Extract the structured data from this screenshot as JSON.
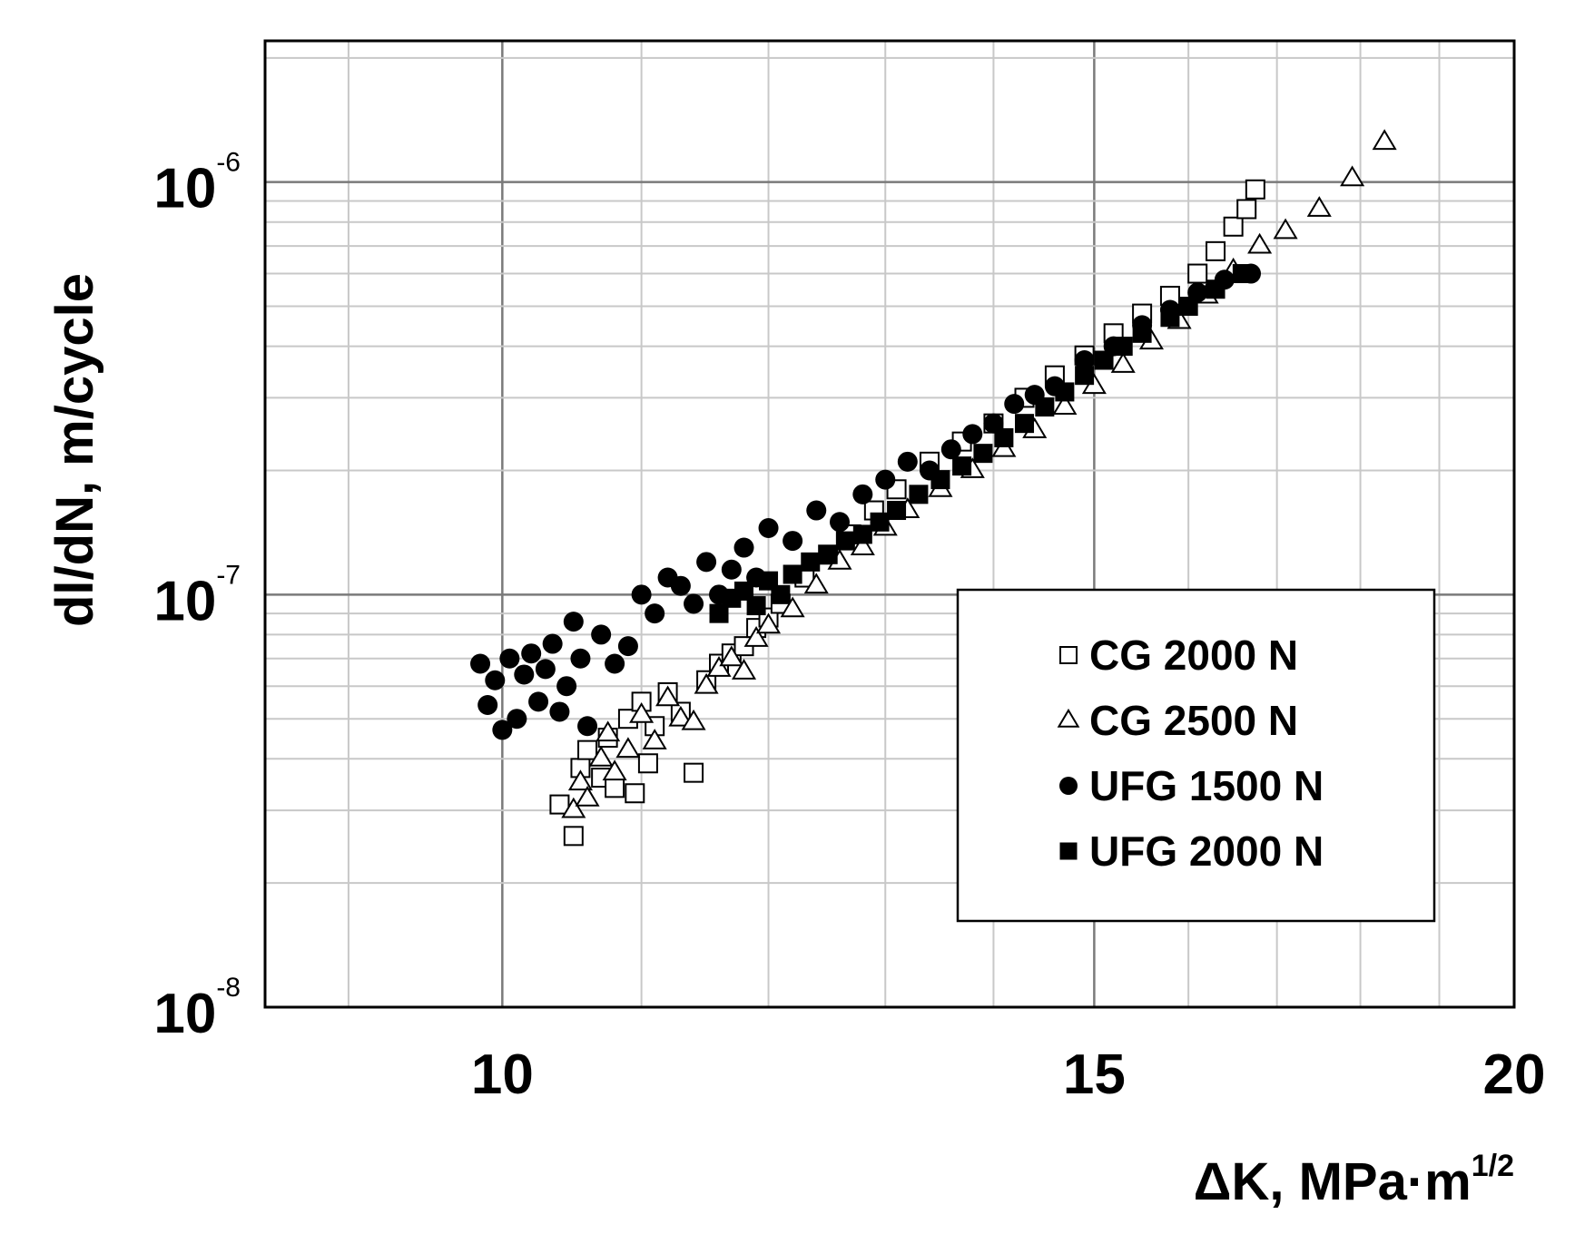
{
  "chart_data": {
    "type": "scatter",
    "title": "",
    "xlabel": "ΔK, MPa·m",
    "xlabel_sup": "1/2",
    "ylabel": "dl/dN, m/cycle",
    "x_scale": "log",
    "y_scale": "log",
    "xlim": [
      8.5,
      20
    ],
    "ylim": [
      1e-08,
      2.2e-06
    ],
    "x_ticks": [
      {
        "value": 10,
        "label": "10"
      },
      {
        "value": 15,
        "label": "15"
      },
      {
        "value": 20,
        "label": "20"
      }
    ],
    "y_ticks": [
      {
        "value": 1e-08,
        "base": "10",
        "exp": "-8"
      },
      {
        "value": 1e-07,
        "base": "10",
        "exp": "-7"
      },
      {
        "value": 1e-06,
        "base": "10",
        "exp": "-6"
      }
    ],
    "grid": true,
    "legend_position": "lower-right",
    "series": [
      {
        "name": "CG 2000 N",
        "marker": "open-square",
        "x": [
          10.4,
          10.5,
          10.55,
          10.6,
          10.7,
          10.75,
          10.8,
          10.9,
          10.95,
          11.0,
          11.05,
          11.1,
          11.2,
          11.3,
          11.4,
          11.5,
          11.6,
          11.7,
          11.8,
          11.9,
          12.0,
          12.1,
          12.3,
          12.5,
          12.7,
          12.9,
          13.1,
          13.4,
          13.7,
          14.0,
          14.3,
          14.6,
          14.9,
          15.2,
          15.5,
          15.8,
          16.1,
          16.3,
          16.5,
          16.65,
          16.75
        ],
        "y": [
          3.1e-08,
          2.6e-08,
          3.8e-08,
          4.2e-08,
          3.6e-08,
          4.5e-08,
          3.4e-08,
          5e-08,
          3.3e-08,
          5.5e-08,
          3.9e-08,
          4.8e-08,
          5.8e-08,
          5.2e-08,
          3.7e-08,
          6.2e-08,
          6.8e-08,
          7.2e-08,
          7.5e-08,
          8.3e-08,
          8.8e-08,
          9.5e-08,
          1.1e-07,
          1.25e-07,
          1.4e-07,
          1.6e-07,
          1.8e-07,
          2.1e-07,
          2.35e-07,
          2.6e-07,
          3e-07,
          3.4e-07,
          3.8e-07,
          4.3e-07,
          4.8e-07,
          5.3e-07,
          6e-07,
          6.8e-07,
          7.8e-07,
          8.6e-07,
          9.6e-07
        ]
      },
      {
        "name": "CG 2500 N",
        "marker": "open-triangle",
        "x": [
          10.5,
          10.55,
          10.6,
          10.7,
          10.75,
          10.8,
          10.9,
          11.0,
          11.1,
          11.2,
          11.3,
          11.4,
          11.5,
          11.6,
          11.7,
          11.8,
          11.9,
          12.0,
          12.2,
          12.4,
          12.6,
          12.8,
          13.0,
          13.2,
          13.5,
          13.8,
          14.1,
          14.4,
          14.7,
          15.0,
          15.3,
          15.6,
          15.9,
          16.2,
          16.5,
          16.8,
          17.1,
          17.5,
          17.9,
          18.3
        ],
        "y": [
          3e-08,
          3.5e-08,
          3.2e-08,
          4e-08,
          4.6e-08,
          3.7e-08,
          4.2e-08,
          5.1e-08,
          4.4e-08,
          5.6e-08,
          5e-08,
          4.9e-08,
          6e-08,
          6.6e-08,
          7e-08,
          6.5e-08,
          7.8e-08,
          8.4e-08,
          9.2e-08,
          1.05e-07,
          1.2e-07,
          1.3e-07,
          1.45e-07,
          1.6e-07,
          1.8e-07,
          2e-07,
          2.25e-07,
          2.5e-07,
          2.85e-07,
          3.2e-07,
          3.6e-07,
          4.1e-07,
          4.6e-07,
          5.3e-07,
          6.1e-07,
          7e-07,
          7.6e-07,
          8.6e-07,
          1.02e-06,
          1.25e-06
        ]
      },
      {
        "name": "UFG 1500 N",
        "marker": "filled-circle",
        "x": [
          9.85,
          9.9,
          9.95,
          10.0,
          10.05,
          10.1,
          10.15,
          10.2,
          10.25,
          10.3,
          10.35,
          10.4,
          10.45,
          10.5,
          10.55,
          10.6,
          10.7,
          10.8,
          10.9,
          11.0,
          11.1,
          11.2,
          11.3,
          11.4,
          11.5,
          11.6,
          11.7,
          11.8,
          11.9,
          12.0,
          12.2,
          12.4,
          12.6,
          12.8,
          13.0,
          13.2,
          13.4,
          13.6,
          13.8,
          14.0,
          14.2,
          14.4,
          14.6,
          14.9,
          15.2,
          15.5,
          15.8,
          16.1,
          16.4,
          16.7
        ],
        "y": [
          6.8e-08,
          5.4e-08,
          6.2e-08,
          4.7e-08,
          7e-08,
          5e-08,
          6.4e-08,
          7.2e-08,
          5.5e-08,
          6.6e-08,
          7.6e-08,
          5.2e-08,
          6e-08,
          8.6e-08,
          7e-08,
          4.8e-08,
          8e-08,
          6.8e-08,
          7.5e-08,
          1e-07,
          9e-08,
          1.1e-07,
          1.05e-07,
          9.5e-08,
          1.2e-07,
          1e-07,
          1.15e-07,
          1.3e-07,
          1.1e-07,
          1.45e-07,
          1.35e-07,
          1.6e-07,
          1.5e-07,
          1.75e-07,
          1.9e-07,
          2.1e-07,
          2e-07,
          2.25e-07,
          2.45e-07,
          2.6e-07,
          2.9e-07,
          3.05e-07,
          3.2e-07,
          3.7e-07,
          4e-07,
          4.5e-07,
          4.9e-07,
          5.4e-07,
          5.8e-07,
          6e-07
        ]
      },
      {
        "name": "UFG 2000 N",
        "marker": "filled-square",
        "x": [
          11.6,
          11.7,
          11.8,
          11.9,
          12.0,
          12.1,
          12.2,
          12.35,
          12.5,
          12.65,
          12.8,
          12.95,
          13.1,
          13.3,
          13.5,
          13.7,
          13.9,
          14.1,
          14.3,
          14.5,
          14.7,
          14.9,
          15.1,
          15.3,
          15.5,
          15.8,
          16.0,
          16.3,
          16.6
        ],
        "y": [
          9e-08,
          9.8e-08,
          1.02e-07,
          9.4e-08,
          1.08e-07,
          1e-07,
          1.12e-07,
          1.2e-07,
          1.25e-07,
          1.35e-07,
          1.4e-07,
          1.5e-07,
          1.6e-07,
          1.75e-07,
          1.9e-07,
          2.05e-07,
          2.2e-07,
          2.4e-07,
          2.6e-07,
          2.85e-07,
          3.1e-07,
          3.4e-07,
          3.7e-07,
          4e-07,
          4.3e-07,
          4.7e-07,
          5e-07,
          5.5e-07,
          6e-07
        ]
      }
    ]
  }
}
